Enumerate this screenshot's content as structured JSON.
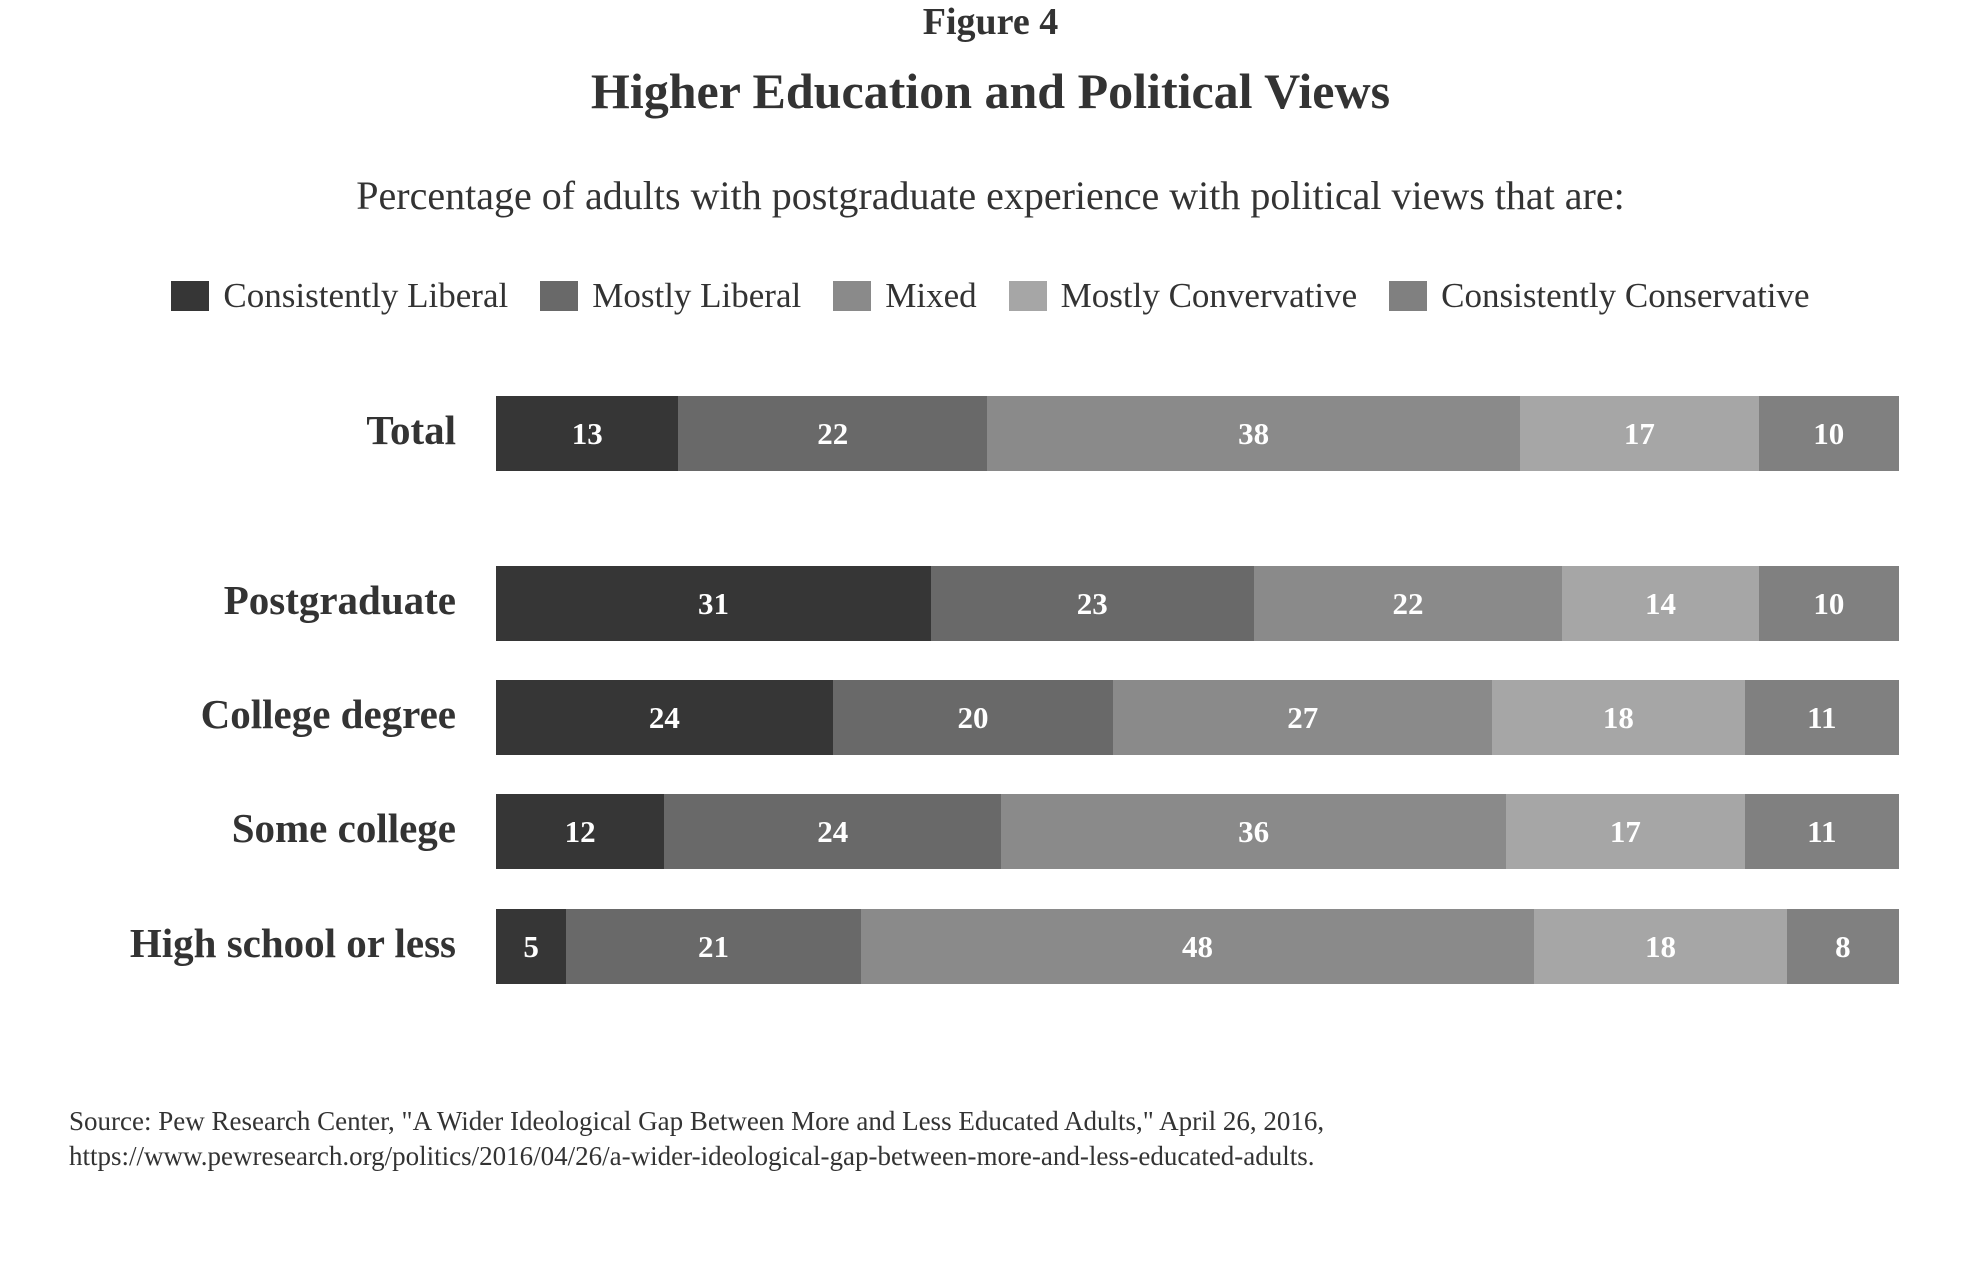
{
  "figure_label": "Figure 4",
  "chart_data": {
    "type": "bar",
    "orientation": "horizontal",
    "stacked": true,
    "title": "Higher Education and Political Views",
    "subtitle": "Percentage of adults with postgraduate experience with political views that are:",
    "categories": [
      "Total",
      "Postgraduate",
      "College degree",
      "Some college",
      "High school or less"
    ],
    "series": [
      {
        "name": "Consistently Liberal",
        "color": "#363636",
        "values": [
          13,
          31,
          24,
          12,
          5
        ]
      },
      {
        "name": "Mostly Liberal",
        "color": "#696969",
        "values": [
          22,
          23,
          20,
          24,
          21
        ]
      },
      {
        "name": "Mixed",
        "color": "#8a8a8a",
        "values": [
          38,
          22,
          27,
          36,
          48
        ]
      },
      {
        "name": "Mostly Convervative",
        "color": "#a6a6a6",
        "values": [
          17,
          14,
          18,
          17,
          18
        ]
      },
      {
        "name": "Consistently Conservative",
        "color": "#808080",
        "values": [
          10,
          10,
          11,
          11,
          8
        ]
      }
    ],
    "xlim": [
      0,
      100
    ],
    "legend_position": "top",
    "grid": false,
    "data_labels": true
  },
  "source": {
    "line1": "Source: Pew Research Center, \"A Wider Ideological Gap Between More and Less Educated Adults,\" April 26, 2016,",
    "line2": "https://www.pewresearch.org/politics/2016/04/26/a-wider-ideological-gap-between-more-and-less-educated-adults."
  }
}
